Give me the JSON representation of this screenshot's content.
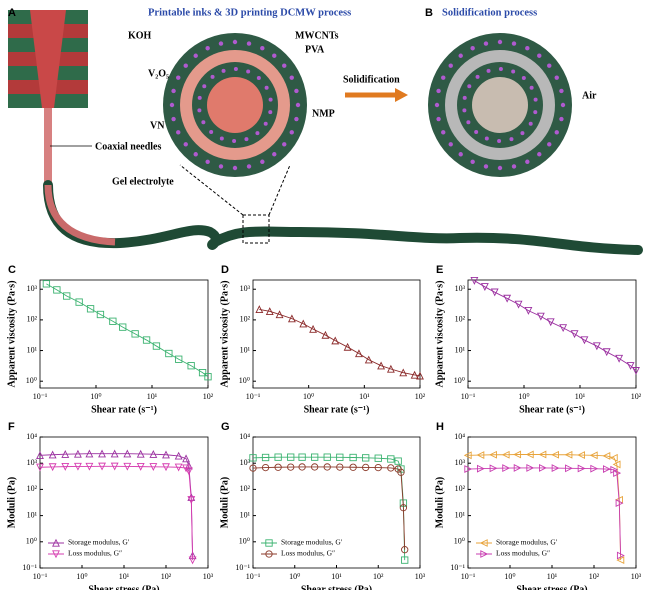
{
  "schematic": {
    "panel_a": "A",
    "title_a": "Printable inks & 3D printing DCMW process",
    "panel_b": "B",
    "title_b": "Solidification process",
    "koh": "KOH",
    "mwcnts": "MWCNTs",
    "pva": "PVA",
    "v2o5": "V₂O₅",
    "nmp": "NMP",
    "vn": "VN",
    "needles": "Coaxial needles",
    "gel": "Gel electrolyte",
    "solidification": "Solidification",
    "air": "Air"
  },
  "chart_data": [
    {
      "type": "scatter-line",
      "panel": "C",
      "xlabel": "Shear rate (s⁻¹)",
      "ylabel": "Apparent viscosity (Pa·s)",
      "xscale": "log",
      "yscale": "log",
      "xlim": [
        0.1,
        100
      ],
      "ylim": [
        0.6,
        2000
      ],
      "xticks": [
        {
          "value": 0.1,
          "label": "10⁻¹"
        },
        {
          "value": 1,
          "label": "10⁰"
        },
        {
          "value": 10,
          "label": "10¹"
        },
        {
          "value": 100,
          "label": "10²"
        }
      ],
      "yticks": [
        {
          "value": 1,
          "label": "10⁰"
        },
        {
          "value": 10,
          "label": "10¹"
        },
        {
          "value": 100,
          "label": "10²"
        },
        {
          "value": 1000,
          "label": "10³"
        }
      ],
      "x": [
        0.13,
        0.2,
        0.3,
        0.5,
        0.8,
        1.2,
        2,
        3,
        5,
        8,
        12,
        20,
        30,
        50,
        80,
        100
      ],
      "values": [
        1500,
        950,
        600,
        380,
        230,
        150,
        90,
        58,
        35,
        22,
        14,
        8,
        5.2,
        3.2,
        1.9,
        1.4
      ],
      "color": "#3cb371",
      "marker": "square"
    },
    {
      "type": "scatter-line",
      "panel": "D",
      "xlabel": "Shear rate (s⁻¹)",
      "ylabel": "Apparent viscosity (Pa·s)",
      "xscale": "log",
      "yscale": "log",
      "xlim": [
        0.1,
        100
      ],
      "ylim": [
        0.6,
        2000
      ],
      "xticks": [
        {
          "value": 0.1,
          "label": "10⁻¹"
        },
        {
          "value": 1,
          "label": "10⁰"
        },
        {
          "value": 10,
          "label": "10¹"
        },
        {
          "value": 100,
          "label": "10²"
        }
      ],
      "yticks": [
        {
          "value": 1,
          "label": "10⁰"
        },
        {
          "value": 10,
          "label": "10¹"
        },
        {
          "value": 100,
          "label": "10²"
        },
        {
          "value": 1000,
          "label": "10³"
        }
      ],
      "x": [
        0.13,
        0.2,
        0.3,
        0.5,
        0.8,
        1.2,
        2,
        3,
        5,
        8,
        12,
        20,
        30,
        50,
        80,
        100
      ],
      "values": [
        220,
        190,
        150,
        110,
        75,
        50,
        32,
        21,
        13,
        8,
        5,
        3.2,
        2.5,
        1.9,
        1.6,
        1.5
      ],
      "color": "#8b2a2a",
      "marker": "triangle-up"
    },
    {
      "type": "scatter-line",
      "panel": "E",
      "xlabel": "Shear rate (s⁻¹)",
      "ylabel": "Apparent viscosity (Pa·s)",
      "xscale": "log",
      "yscale": "log",
      "xlim": [
        0.1,
        100
      ],
      "ylim": [
        0.6,
        2000
      ],
      "xticks": [
        {
          "value": 0.1,
          "label": "10⁻¹"
        },
        {
          "value": 1,
          "label": "10⁰"
        },
        {
          "value": 10,
          "label": "10¹"
        },
        {
          "value": 100,
          "label": "10²"
        }
      ],
      "yticks": [
        {
          "value": 1,
          "label": "10⁰"
        },
        {
          "value": 10,
          "label": "10¹"
        },
        {
          "value": 100,
          "label": "10²"
        },
        {
          "value": 1000,
          "label": "10³"
        }
      ],
      "x": [
        0.13,
        0.2,
        0.3,
        0.5,
        0.8,
        1.2,
        2,
        3,
        5,
        8,
        12,
        20,
        30,
        50,
        80,
        100
      ],
      "values": [
        1900,
        1200,
        800,
        500,
        320,
        200,
        130,
        85,
        55,
        35,
        22,
        14,
        9,
        5.5,
        3.2,
        2.2
      ],
      "color": "#9b30a0",
      "marker": "triangle-down"
    },
    {
      "type": "scatter-line",
      "panel": "F",
      "xlabel": "Shear stress (Pa)",
      "ylabel": "Moduli (Pa)",
      "xscale": "log",
      "yscale": "log",
      "xlim": [
        0.1,
        1000
      ],
      "ylim": [
        0.1,
        10000
      ],
      "legend": "lower left",
      "xticks": [
        {
          "value": 0.1,
          "label": "10⁻¹"
        },
        {
          "value": 1,
          "label": "10⁰"
        },
        {
          "value": 10,
          "label": "10¹"
        },
        {
          "value": 100,
          "label": "10²"
        },
        {
          "value": 1000,
          "label": "10³"
        }
      ],
      "yticks": [
        {
          "value": 0.1,
          "label": "10⁻¹"
        },
        {
          "value": 1,
          "label": "10⁰"
        },
        {
          "value": 10,
          "label": "10¹"
        },
        {
          "value": 100,
          "label": "10²"
        },
        {
          "value": 1000,
          "label": "10³"
        },
        {
          "value": 10000,
          "label": "10⁴"
        }
      ],
      "x": [
        0.1,
        0.2,
        0.4,
        0.8,
        1.5,
        3,
        6,
        12,
        25,
        50,
        100,
        200,
        300,
        350,
        400,
        430
      ],
      "series": [
        {
          "name": "Storage modulus, G′",
          "color": "#9b30a0",
          "marker": "triangle-up",
          "values": [
            2000,
            2100,
            2200,
            2250,
            2300,
            2300,
            2300,
            2300,
            2250,
            2200,
            2100,
            1900,
            1500,
            800,
            50,
            0.3
          ]
        },
        {
          "name": "Loss modulus, G″",
          "color": "#d63cb0",
          "marker": "triangle-down",
          "values": [
            700,
            720,
            740,
            750,
            750,
            760,
            760,
            750,
            740,
            730,
            720,
            700,
            650,
            500,
            40,
            0.2
          ]
        }
      ]
    },
    {
      "type": "scatter-line",
      "panel": "G",
      "xlabel": "Shear stress (Pa)",
      "ylabel": "Moduli (Pa)",
      "xscale": "log",
      "yscale": "log",
      "xlim": [
        0.1,
        1000
      ],
      "ylim": [
        0.1,
        10000
      ],
      "legend": "lower left",
      "xticks": [
        {
          "value": 0.1,
          "label": "10⁻¹"
        },
        {
          "value": 1,
          "label": "10⁰"
        },
        {
          "value": 10,
          "label": "10¹"
        },
        {
          "value": 100,
          "label": "10²"
        },
        {
          "value": 1000,
          "label": "10³"
        }
      ],
      "yticks": [
        {
          "value": 0.1,
          "label": "10⁻¹"
        },
        {
          "value": 1,
          "label": "10⁰"
        },
        {
          "value": 10,
          "label": "10¹"
        },
        {
          "value": 100,
          "label": "10²"
        },
        {
          "value": 1000,
          "label": "10³"
        },
        {
          "value": 10000,
          "label": "10⁴"
        }
      ],
      "x": [
        0.1,
        0.2,
        0.4,
        0.8,
        1.5,
        3,
        6,
        12,
        25,
        50,
        100,
        200,
        300,
        350,
        400,
        430
      ],
      "series": [
        {
          "name": "Storage modulus, G′",
          "color": "#3cb371",
          "marker": "square",
          "values": [
            1600,
            1650,
            1700,
            1700,
            1700,
            1700,
            1700,
            1680,
            1650,
            1600,
            1550,
            1450,
            1200,
            600,
            30,
            0.2
          ]
        },
        {
          "name": "Loss modulus, G″",
          "color": "#8b3a2a",
          "marker": "circle",
          "values": [
            650,
            680,
            700,
            710,
            720,
            720,
            720,
            710,
            700,
            690,
            680,
            660,
            600,
            450,
            20,
            0.5
          ]
        }
      ]
    },
    {
      "type": "scatter-line",
      "panel": "H",
      "xlabel": "Shear stress (Pa)",
      "ylabel": "Moduli (Pa)",
      "xscale": "log",
      "yscale": "log",
      "xlim": [
        0.1,
        1000
      ],
      "ylim": [
        0.1,
        10000
      ],
      "legend": "lower left",
      "xticks": [
        {
          "value": 0.1,
          "label": "10⁻¹"
        },
        {
          "value": 1,
          "label": "10⁰"
        },
        {
          "value": 10,
          "label": "10¹"
        },
        {
          "value": 100,
          "label": "10²"
        },
        {
          "value": 1000,
          "label": "10³"
        }
      ],
      "yticks": [
        {
          "value": 0.1,
          "label": "10⁻¹"
        },
        {
          "value": 1,
          "label": "10⁰"
        },
        {
          "value": 10,
          "label": "10¹"
        },
        {
          "value": 100,
          "label": "10²"
        },
        {
          "value": 1000,
          "label": "10³"
        },
        {
          "value": 10000,
          "label": "10⁴"
        }
      ],
      "x": [
        0.1,
        0.2,
        0.4,
        0.8,
        1.5,
        3,
        6,
        12,
        25,
        50,
        100,
        200,
        300,
        350,
        400,
        430
      ],
      "series": [
        {
          "name": "Storage modulus, G′",
          "color": "#e8a33a",
          "marker": "triangle-left",
          "values": [
            2000,
            2050,
            2100,
            2100,
            2150,
            2150,
            2150,
            2100,
            2100,
            2050,
            2000,
            1900,
            1600,
            900,
            40,
            0.2
          ]
        },
        {
          "name": "Loss modulus, G″",
          "color": "#c83cb0",
          "marker": "triangle-right",
          "values": [
            600,
            620,
            640,
            650,
            660,
            660,
            660,
            650,
            640,
            630,
            620,
            600,
            560,
            420,
            30,
            0.3
          ]
        }
      ]
    }
  ]
}
